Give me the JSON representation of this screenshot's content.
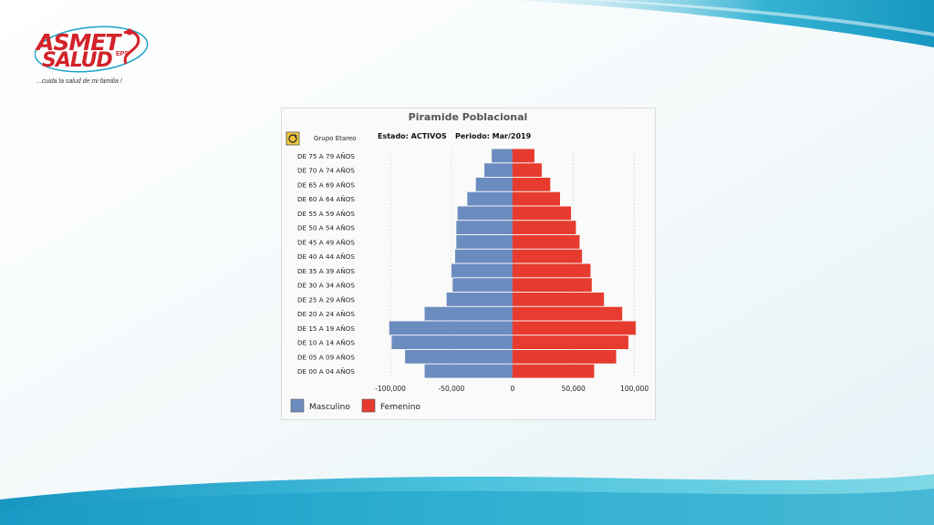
{
  "brand": {
    "name_top": "ASMET",
    "name_bottom": "SALUD",
    "suffix": "EPS",
    "tagline": "...cuida la salud de mi familia !",
    "colors": {
      "primary": "#d3222a",
      "accent": "#1aa3c9"
    }
  },
  "toolbar": {
    "refresh_icon": "refresh-icon",
    "group_label": "Grupo Etareo",
    "estado": "Estado: ACTIVOS",
    "periodo": "Periodo: Mar/2019"
  },
  "chart_data": {
    "type": "bar",
    "orientation": "horizontal",
    "title": "Piramide Poblacional",
    "categories": [
      "DE 75 A 79 AÑOS",
      "DE 70 A 74 AÑOS",
      "DE 65 A 69 AÑOS",
      "DE 60 A 64 AÑOS",
      "DE 55 A 59 AÑOS",
      "DE 50 A 54 AÑOS",
      "DE 45 A 49 AÑOS",
      "DE 40 A 44 AÑOS",
      "DE 35 A 39 AÑOS",
      "DE 30 A 34 AÑOS",
      "DE 25 A 29 AÑOS",
      "DE 20 A 24 AÑOS",
      "DE 15 A 19 AÑOS",
      "DE 10 A 14 AÑOS",
      "DE 05 A 09 AÑOS",
      "DE 00 A 04 AÑOS"
    ],
    "series": [
      {
        "name": "Masculino",
        "color": "#6b8cbf",
        "values": [
          -17000,
          -23000,
          -30000,
          -37000,
          -45000,
          -46000,
          -46000,
          -47000,
          -50000,
          -49000,
          -54000,
          -72000,
          -101000,
          -99000,
          -88000,
          -72000
        ]
      },
      {
        "name": "Femenino",
        "color": "#e63b2e",
        "values": [
          18000,
          24000,
          31000,
          39000,
          48000,
          52000,
          55000,
          57000,
          64000,
          65000,
          75000,
          90000,
          101000,
          95000,
          85000,
          67000
        ]
      }
    ],
    "xlim": [
      -118000,
      116000
    ],
    "xticks": [
      -100000,
      -50000,
      0,
      50000,
      100000
    ],
    "xtick_labels": [
      "-100,000",
      "-50,000",
      "0",
      "50,000",
      "100,000"
    ],
    "grid": true,
    "legend_position": "bottom-left"
  }
}
